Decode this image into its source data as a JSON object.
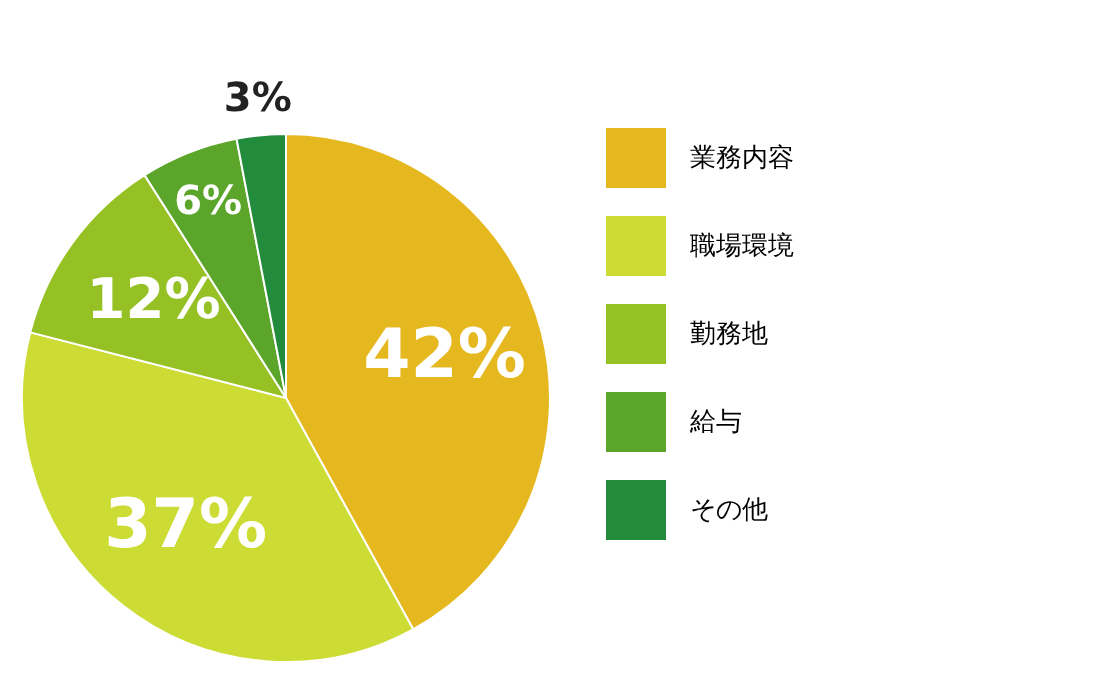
{
  "chart_data": {
    "type": "pie",
    "categories": [
      "業務内容",
      "職場環境",
      "勤務地",
      "給与",
      "その他"
    ],
    "values": [
      42,
      37,
      12,
      6,
      3
    ],
    "colors": [
      "#e6b820",
      "#cddc35",
      "#95c125",
      "#5aa52a",
      "#228b3c"
    ],
    "value_labels": [
      "42%",
      "37%",
      "12%",
      "6%",
      "3%"
    ],
    "legend": "right"
  }
}
